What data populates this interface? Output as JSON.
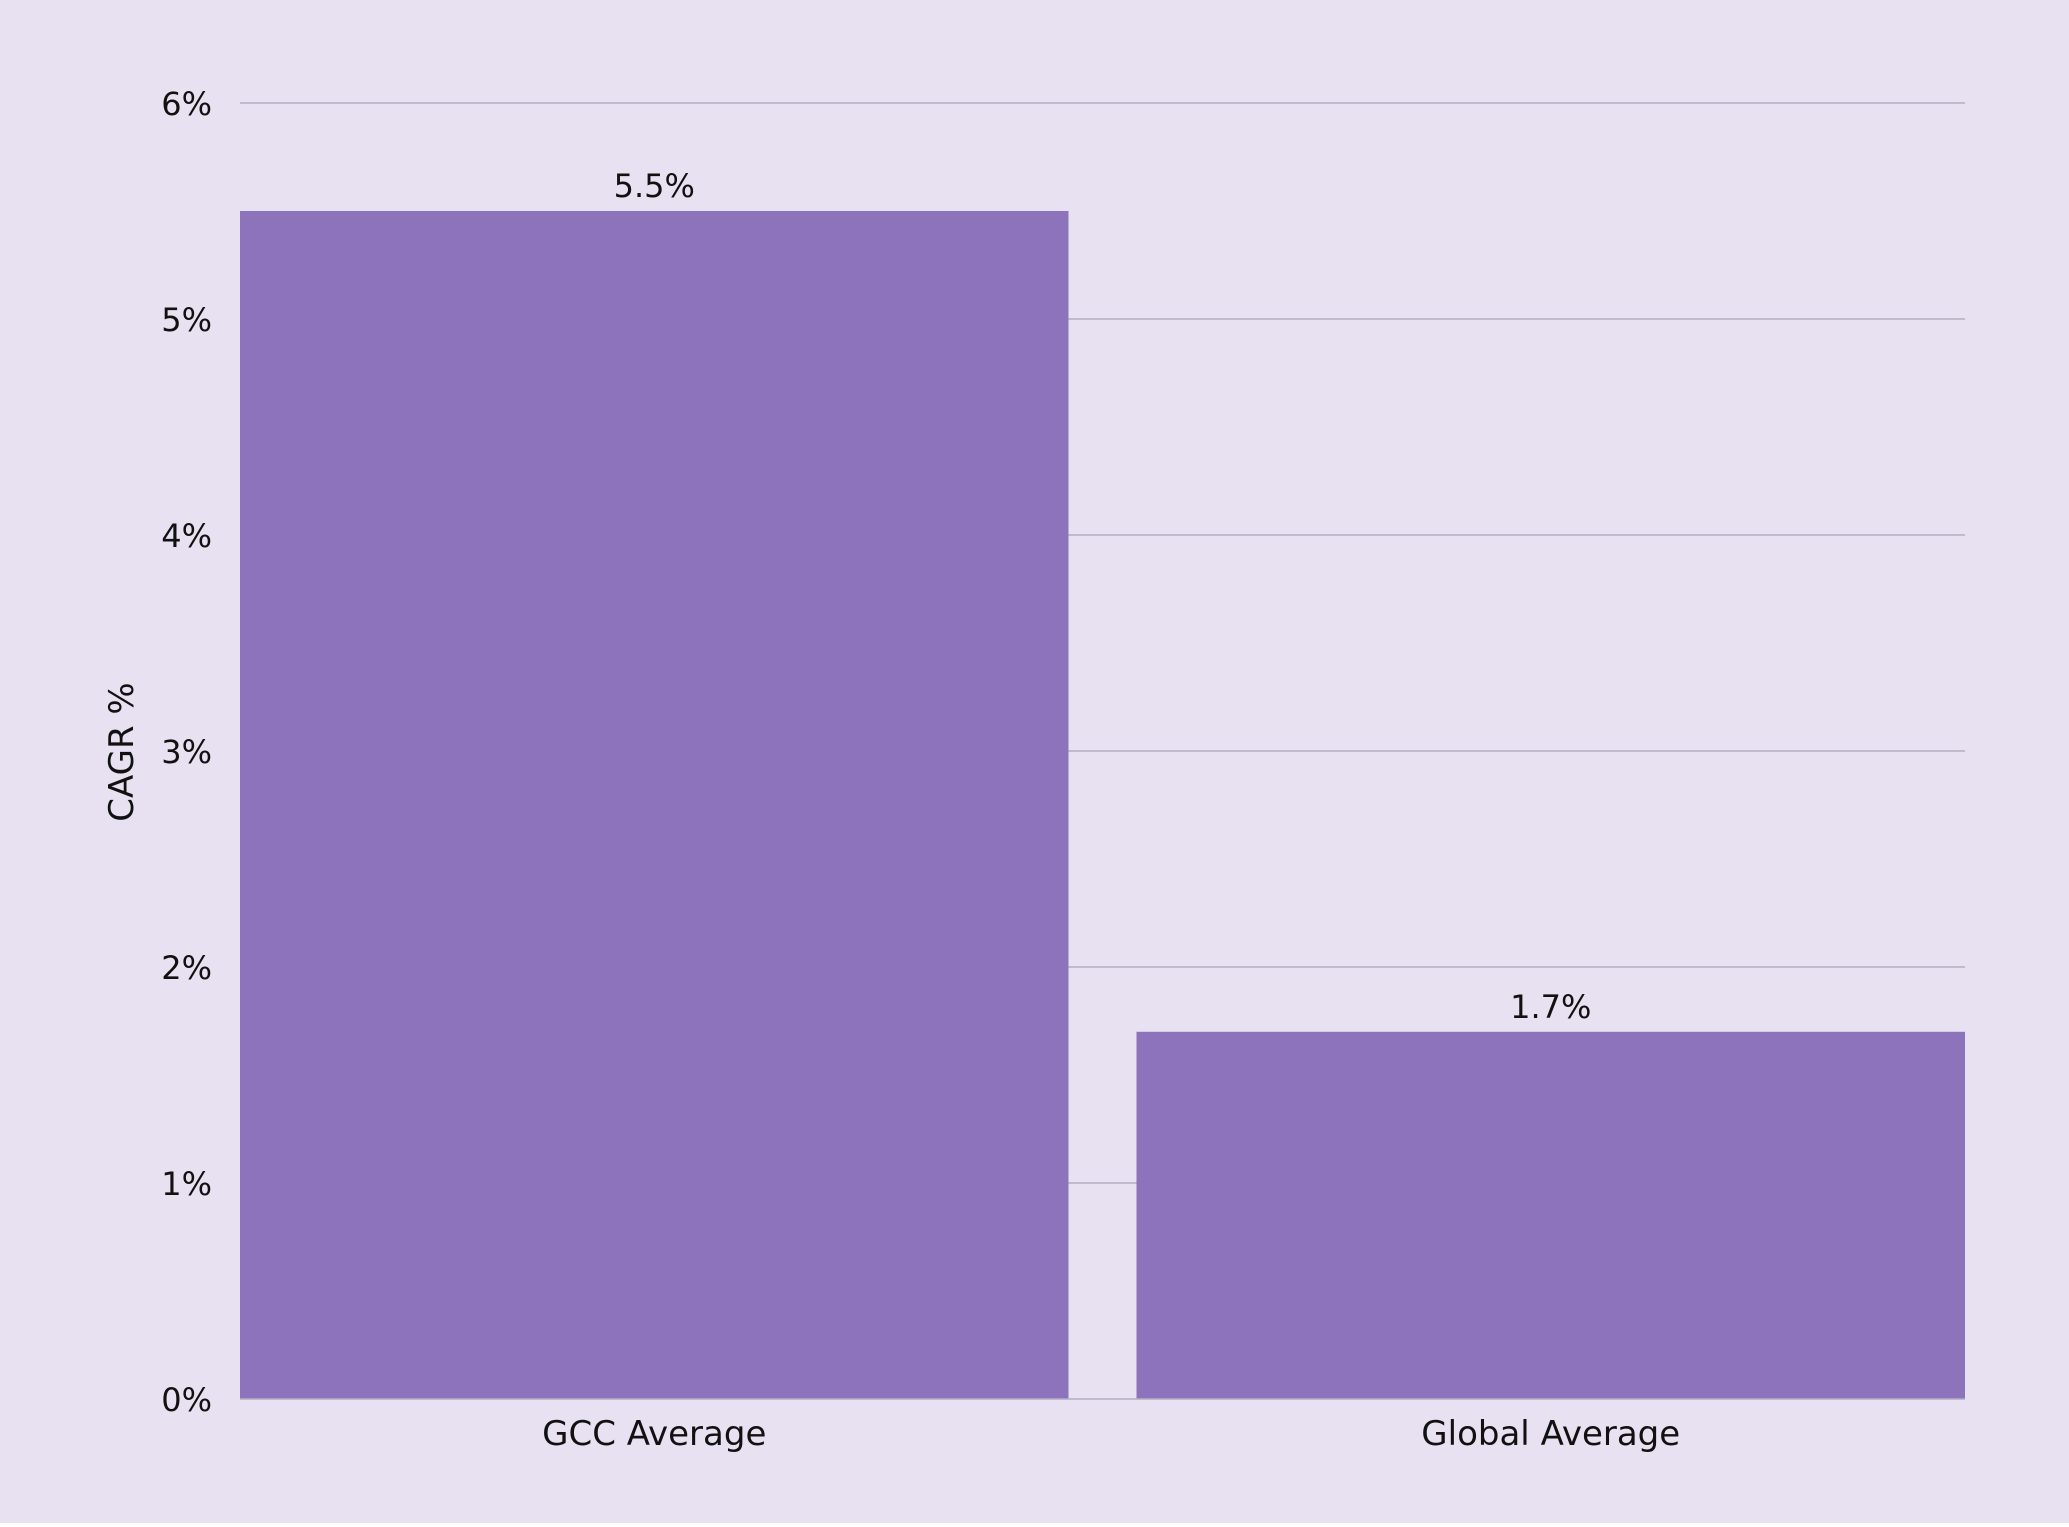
{
  "chart_data": {
    "type": "bar",
    "categories": [
      "GCC Average",
      "Global Average"
    ],
    "values": [
      5.5,
      1.7
    ],
    "value_labels": [
      "5.5%",
      "1.7%"
    ],
    "title": "",
    "xlabel": "",
    "ylabel": "CAGR %",
    "ylim": [
      0,
      6
    ],
    "yticks": [
      0,
      1,
      2,
      3,
      4,
      5,
      6
    ],
    "ytick_labels": [
      "0%",
      "1%",
      "2%",
      "3%",
      "4%",
      "5%",
      "6%"
    ],
    "grid": true,
    "legend": "none",
    "colors": {
      "background": "#E8E1F1",
      "bar": "#8D73BC",
      "gridline": "#B4AEC0",
      "text": "#111111"
    }
  }
}
